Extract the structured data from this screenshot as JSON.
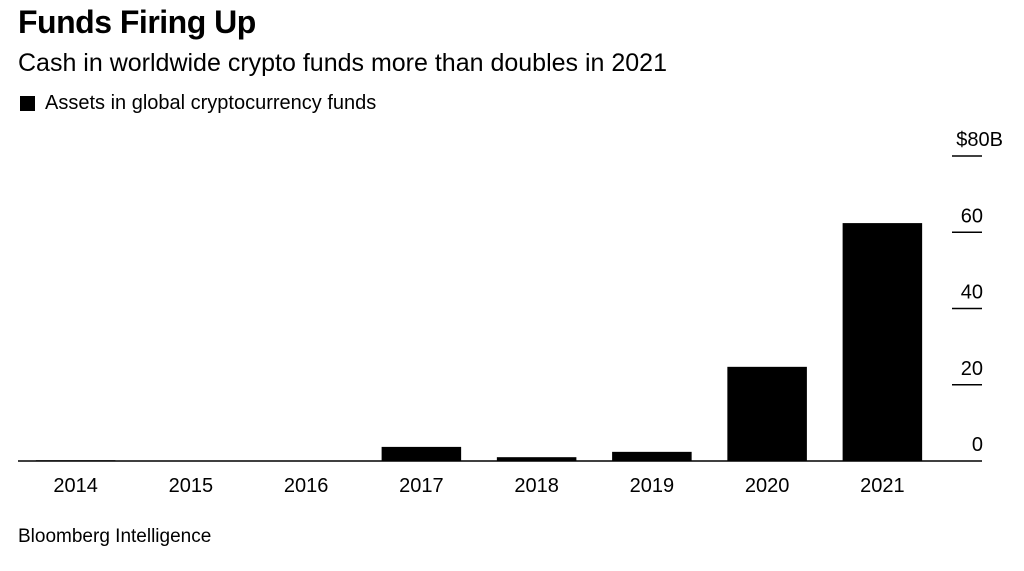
{
  "chart_data": {
    "type": "bar",
    "title": "Funds Firing Up",
    "subtitle": "Cash in worldwide crypto funds more than doubles in 2021",
    "legend": [
      {
        "label": "Assets in global cryptocurrency funds",
        "color": "#000000"
      }
    ],
    "legend_position": "top-left",
    "categories": [
      "2014",
      "2015",
      "2016",
      "2017",
      "2018",
      "2019",
      "2020",
      "2021"
    ],
    "series": [
      {
        "name": "Assets in global cryptocurrency funds",
        "color": "#000000",
        "values": [
          0.2,
          0.1,
          0.1,
          3.7,
          1.0,
          2.4,
          24.7,
          62.4
        ]
      }
    ],
    "ylabel": "",
    "xlabel": "",
    "yaxis_side": "right",
    "ylim": [
      0,
      80
    ],
    "yticks": [
      0,
      20,
      40,
      60,
      80
    ],
    "ytick_labels": [
      "0",
      "20",
      "40",
      "60",
      "$80B"
    ],
    "grid": false,
    "source": "Bloomberg Intelligence"
  }
}
